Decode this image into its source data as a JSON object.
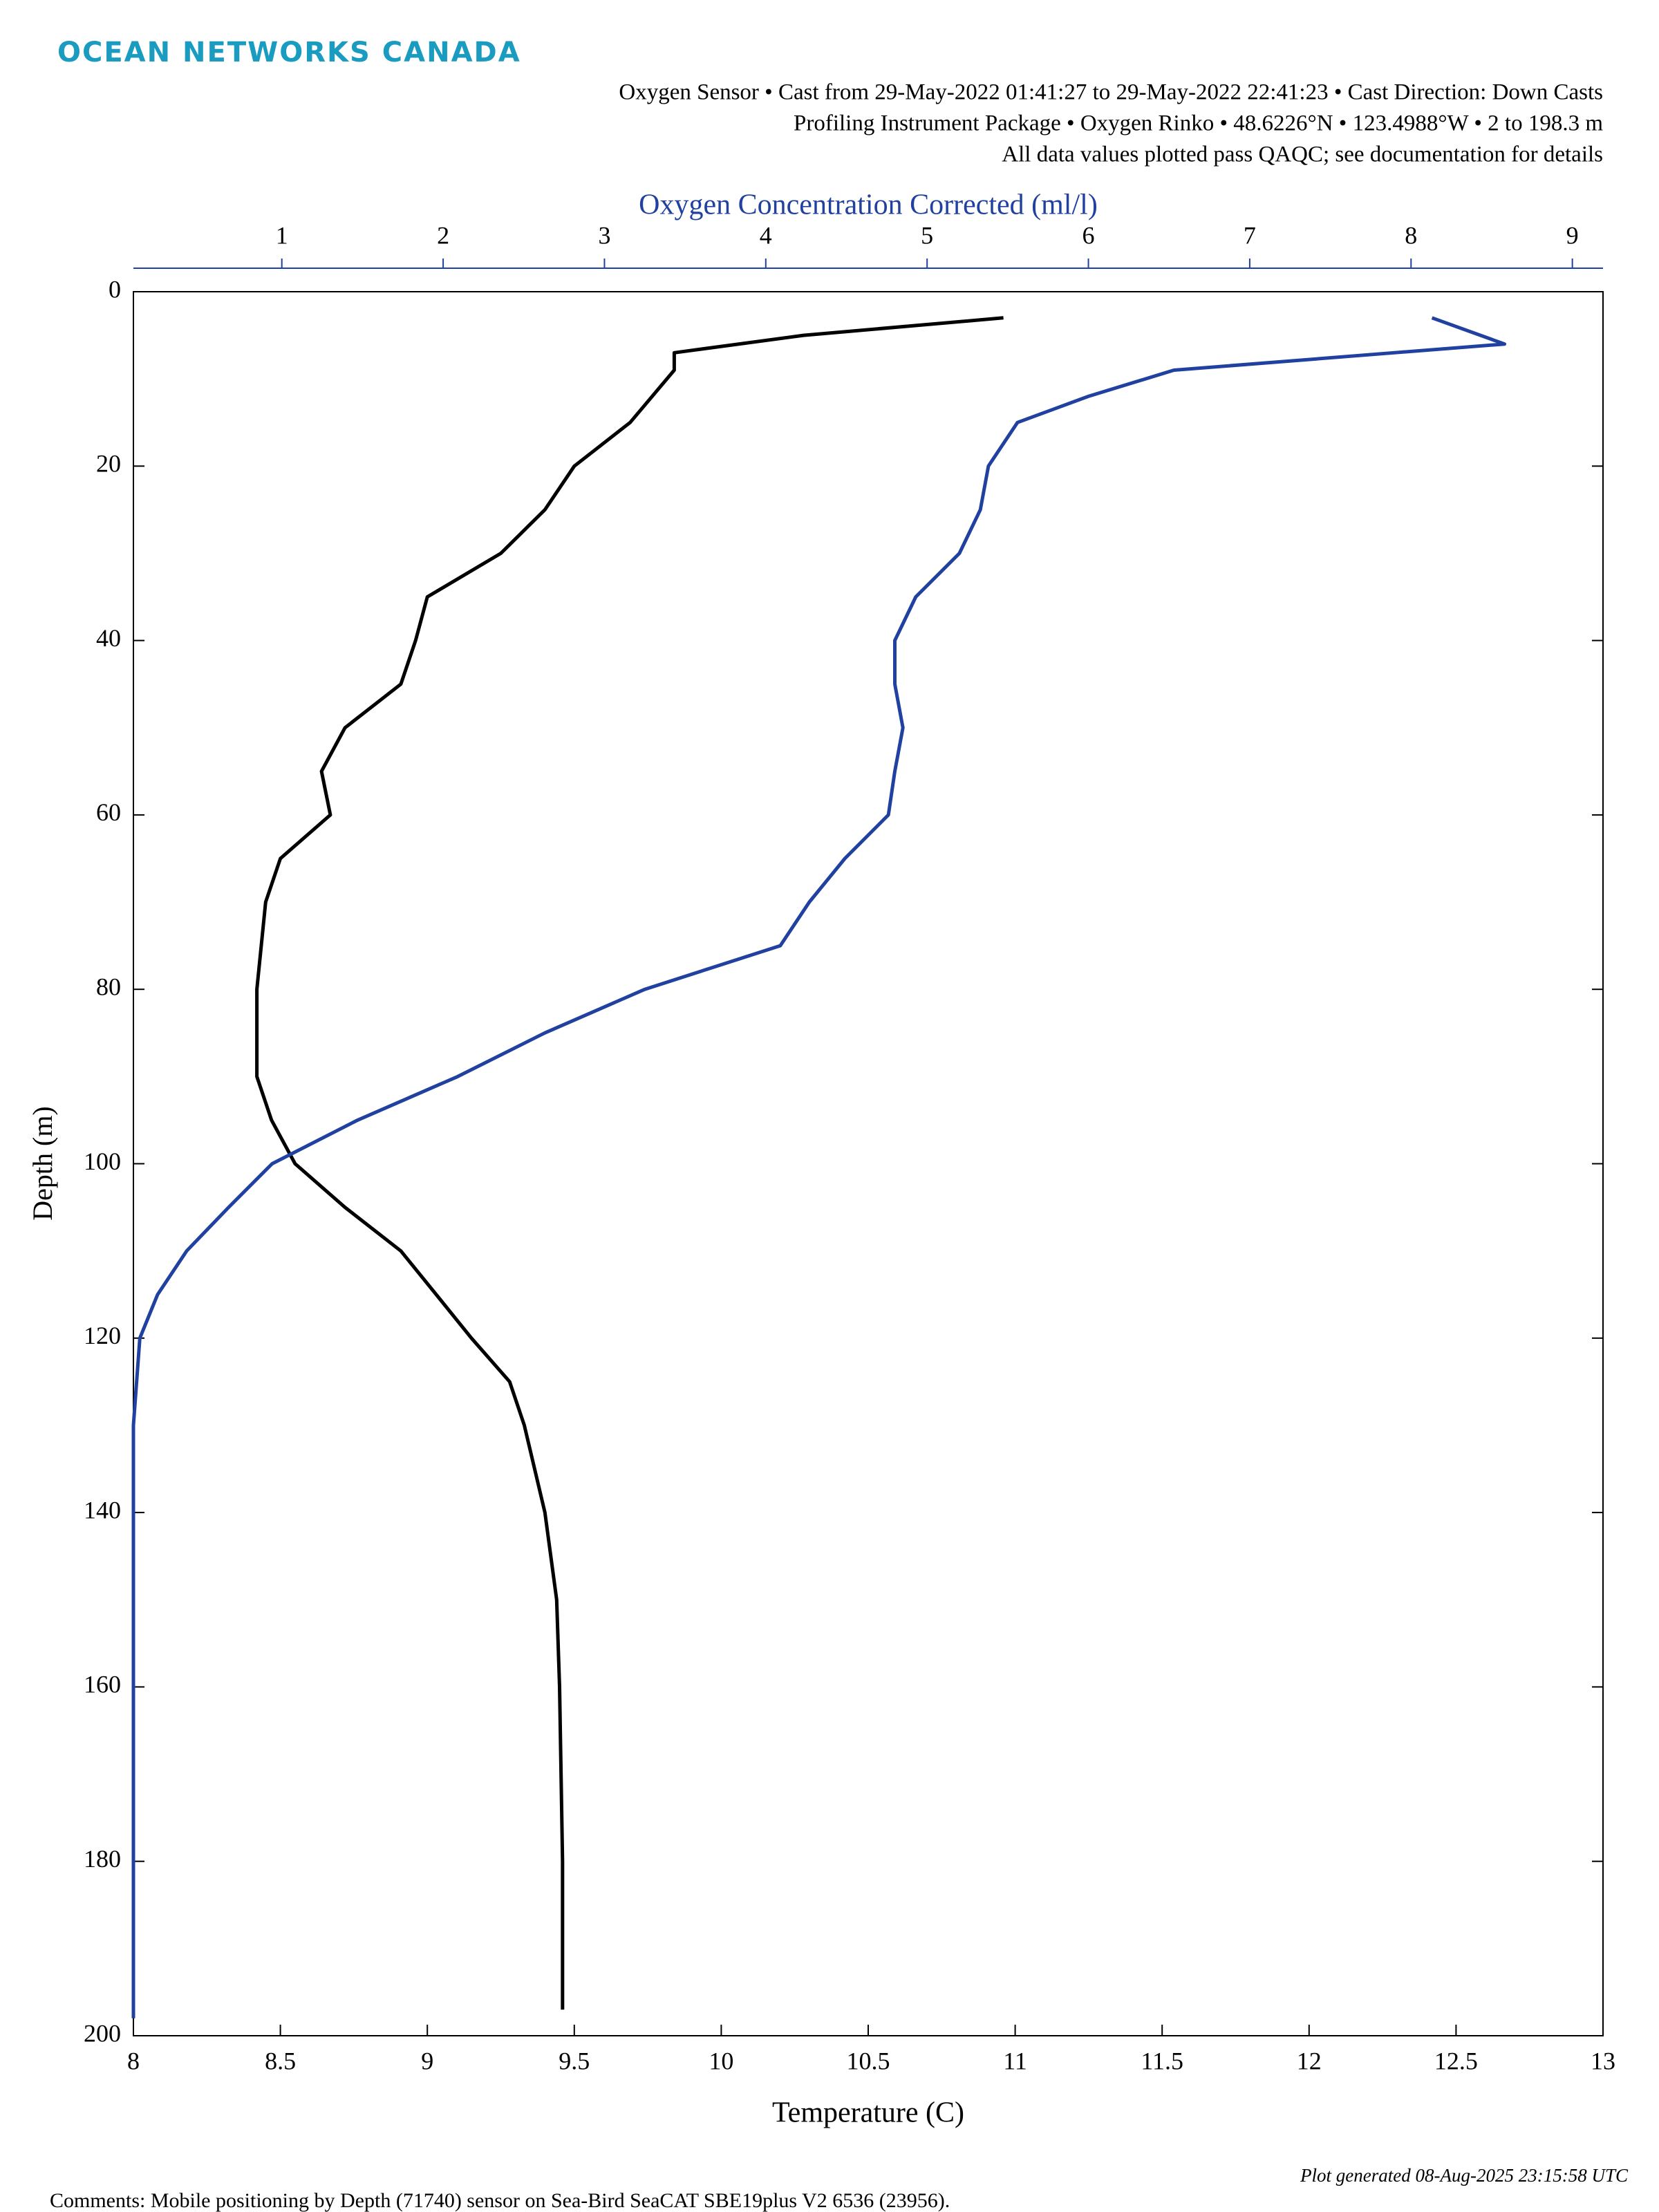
{
  "header": {
    "logo": "OCEAN NETWORKS CANADA",
    "subtitle_lines": [
      "Oxygen Sensor • Cast from 29-May-2022 01:41:27 to 29-May-2022 22:41:23 • Cast Direction: Down Casts",
      "Profiling Instrument Package • Oxygen Rinko • 48.6226°N • 123.4988°W • 2 to 198.3 m",
      "All data values plotted pass QAQC; see documentation for details"
    ]
  },
  "chart_data": {
    "type": "line",
    "x_label": "Temperature (C)",
    "x2_label": "Oxygen Concentration Corrected (ml/l)",
    "y_label": "Depth (m)",
    "xlim": [
      8,
      13
    ],
    "xticks": [
      8,
      8.5,
      9,
      9.5,
      10,
      10.5,
      11,
      11.5,
      12,
      12.5,
      13
    ],
    "x2lim": [
      0.08,
      9.19
    ],
    "x2ticks": [
      1,
      2,
      3,
      4,
      5,
      6,
      7,
      8,
      9
    ],
    "ylim": [
      0,
      200
    ],
    "yticks": [
      0,
      20,
      40,
      60,
      80,
      100,
      120,
      140,
      160,
      180,
      200
    ],
    "y_inverted": true,
    "series": [
      {
        "color": "#000000",
        "axis": "x",
        "y": [
          3,
          5,
          7,
          9,
          15,
          20,
          25,
          30,
          35,
          40,
          45,
          50,
          55,
          60,
          65,
          70,
          80,
          90,
          95,
          100,
          105,
          110,
          115,
          120,
          125,
          130,
          140,
          150,
          160,
          180,
          197
        ],
        "values": [
          10.96,
          10.28,
          9.84,
          9.84,
          9.69,
          9.5,
          9.4,
          9.25,
          9.0,
          8.96,
          8.91,
          8.72,
          8.64,
          8.67,
          8.5,
          8.45,
          8.42,
          8.42,
          8.47,
          8.55,
          8.72,
          8.91,
          9.03,
          9.15,
          9.28,
          9.33,
          9.4,
          9.44,
          9.45,
          9.46,
          9.46
        ]
      },
      {
        "color": "#2141a0",
        "axis": "x2",
        "y": [
          3,
          6,
          9,
          12,
          15,
          20,
          25,
          30,
          35,
          40,
          45,
          50,
          55,
          60,
          65,
          70,
          75,
          80,
          85,
          90,
          95,
          100,
          105,
          110,
          115,
          120,
          130,
          198
        ],
        "values": [
          8.13,
          8.58,
          6.53,
          6.0,
          5.56,
          5.38,
          5.33,
          5.2,
          4.93,
          4.8,
          4.8,
          4.85,
          4.8,
          4.76,
          4.49,
          4.27,
          4.09,
          3.25,
          2.63,
          2.09,
          1.47,
          0.94,
          0.67,
          0.41,
          0.23,
          0.12,
          0.08,
          0.08
        ]
      }
    ]
  },
  "footer": {
    "comments": "Comments: Mobile positioning by Depth (71740) sensor on Sea-Bird SeaCAT SBE19plus V2 6536 (23956).",
    "generated": "Plot generated 08-Aug-2025 23:15:58 UTC"
  }
}
